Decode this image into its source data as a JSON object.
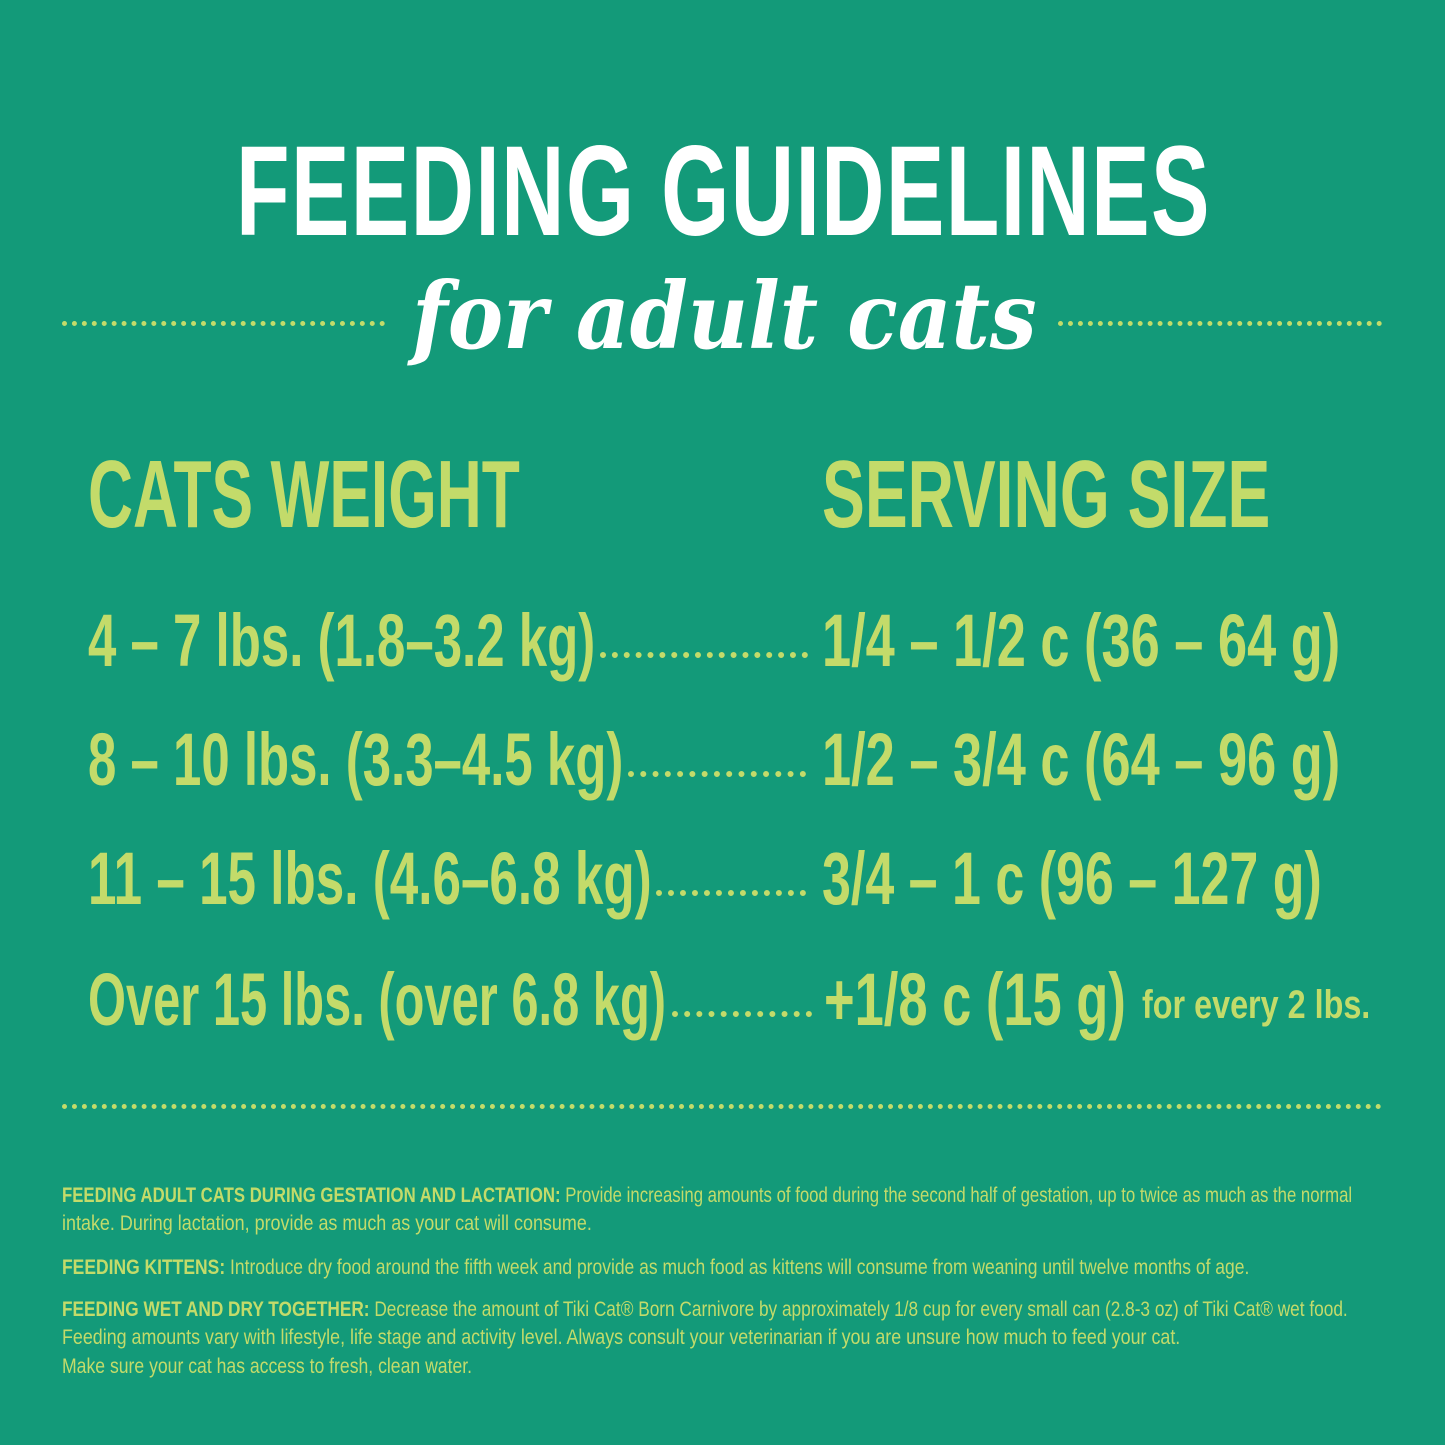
{
  "title": "FEEDING GUIDELINES",
  "subtitle": "for adult cats",
  "headers": {
    "weight": "CATS WEIGHT",
    "serving": "SERVING SIZE"
  },
  "rows": [
    {
      "weight": "4 – 7 lbs. (1.8–3.2 kg)",
      "serving": "1/4 – 1/2 c (36 – 64 g)",
      "note": ""
    },
    {
      "weight": "8 – 10 lbs. (3.3–4.5 kg)",
      "serving": "1/2 – 3/4 c (64 – 96 g)",
      "note": ""
    },
    {
      "weight": "11 – 15 lbs. (4.6–6.8 kg)",
      "serving": "3/4 – 1 c (96 – 127 g)",
      "note": ""
    },
    {
      "weight": "Over 15 lbs. (over 6.8 kg)",
      "serving": "+1/8 c (15 g)",
      "note": "for every 2 lbs."
    }
  ],
  "notes": {
    "gestation_label": "FEEDING ADULT CATS DURING GESTATION AND LACTATION:",
    "gestation_line1": "Provide increasing amounts of food during the second half of gestation, up to twice as much as the normal",
    "gestation_line2": "intake.  During lactation, provide as much as your cat will consume.",
    "kittens_label": "FEEDING KITTENS:",
    "kittens_text": "Introduce dry food around the fifth week and provide as much food as kittens will consume from weaning until twelve months of age.",
    "wetdry_label": "FEEDING WET AND DRY TOGETHER:",
    "wetdry_line1": "Decrease the amount of Tiki Cat® Born Carnivore by approximately 1/8 cup for every small can (2.8-3 oz) of Tiki Cat® wet food.",
    "wetdry_line2": "Feeding amounts vary with lifestyle, life stage and activity level.  Always consult your veterinarian if you are unsure how much to feed your cat.",
    "wetdry_line3": "Make sure your cat has access to fresh, clean water."
  },
  "colors": {
    "background": "#139a79",
    "accent": "#c3db6a",
    "title": "#ffffff"
  }
}
